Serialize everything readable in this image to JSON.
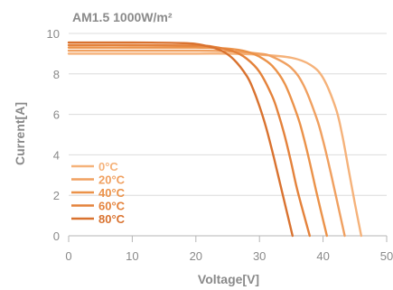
{
  "chart_data": {
    "type": "line",
    "title": "AM1.5 1000W/m²",
    "xlabel": "Voltage[V]",
    "ylabel": "Current[A]",
    "xlim": [
      0,
      50
    ],
    "ylim": [
      0,
      10
    ],
    "xticks": [
      0,
      10,
      20,
      30,
      40,
      50
    ],
    "yticks": [
      0,
      2,
      4,
      6,
      8,
      10
    ],
    "grid": "horizontal",
    "legend_position": "lower-left",
    "series": [
      {
        "name": "0°C",
        "color": "#f5b27a",
        "x": [
          0,
          10,
          20,
          25,
          30,
          35,
          38,
          40,
          42,
          43,
          44,
          45,
          46.0
        ],
        "y": [
          9.0,
          9.0,
          9.0,
          9.0,
          8.95,
          8.8,
          8.45,
          7.8,
          6.3,
          5.0,
          3.3,
          1.6,
          0
        ]
      },
      {
        "name": "20°C",
        "color": "#f0a060",
        "x": [
          0,
          10,
          20,
          25,
          30,
          32,
          35,
          37,
          39,
          40,
          41,
          42,
          43.4
        ],
        "y": [
          9.15,
          9.15,
          9.15,
          9.12,
          9.0,
          8.85,
          8.3,
          7.4,
          5.8,
          4.7,
          3.4,
          2.0,
          0
        ]
      },
      {
        "name": "40°C",
        "color": "#eb9249",
        "x": [
          0,
          10,
          20,
          25,
          28,
          30,
          32,
          34,
          36,
          37,
          38,
          39,
          40.6
        ],
        "y": [
          9.3,
          9.3,
          9.3,
          9.25,
          9.1,
          8.85,
          8.4,
          7.5,
          5.9,
          4.8,
          3.5,
          2.1,
          0
        ]
      },
      {
        "name": "60°C",
        "color": "#e4823b",
        "x": [
          0,
          10,
          20,
          23,
          26,
          28,
          30,
          32,
          33,
          34,
          35,
          36,
          37.9
        ],
        "y": [
          9.42,
          9.42,
          9.4,
          9.33,
          9.1,
          8.75,
          8.1,
          6.9,
          6.0,
          4.9,
          3.6,
          2.2,
          0
        ]
      },
      {
        "name": "80°C",
        "color": "#d9722f",
        "x": [
          0,
          10,
          18,
          21,
          24,
          26,
          28,
          29,
          30,
          31,
          32,
          33,
          35.2
        ],
        "y": [
          9.55,
          9.55,
          9.52,
          9.43,
          9.15,
          8.7,
          7.9,
          7.25,
          6.4,
          5.4,
          4.2,
          2.9,
          0
        ]
      }
    ]
  }
}
